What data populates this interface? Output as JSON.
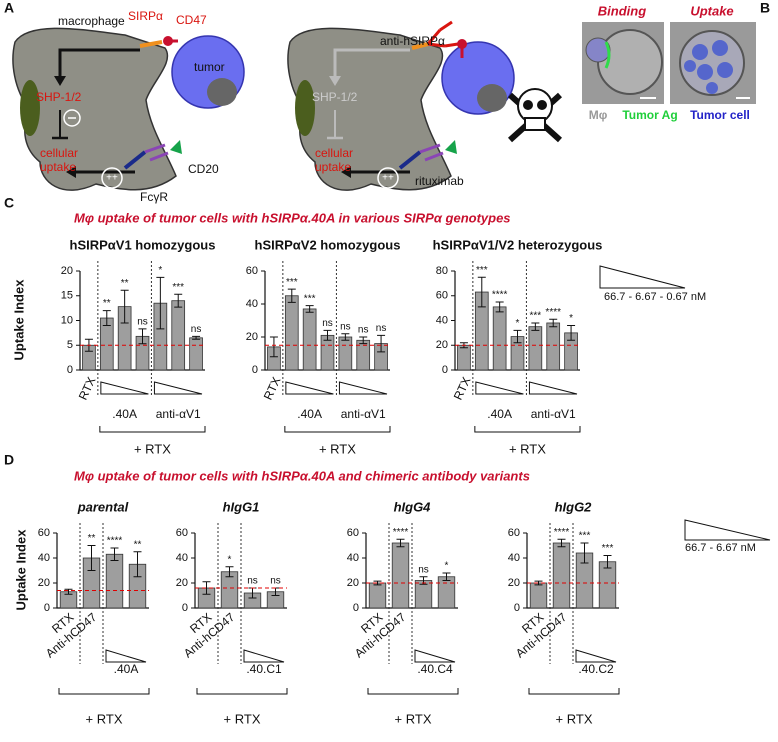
{
  "panel_a": {
    "label": "A",
    "left": {
      "macrophage": "macrophage",
      "sirpa": "SIRPα",
      "cd47": "CD47",
      "shp": "SHP-1/2",
      "tumor": "tumor",
      "uptake": [
        "cellular",
        "uptake"
      ],
      "cd20": "CD20",
      "fcgr": "FcγR",
      "plus": "++"
    },
    "right": {
      "antibody": "anti-hSIRPα",
      "shp": "SHP-1/2",
      "rituximab": "rituximab",
      "uptake": [
        "cellular",
        "uptake"
      ],
      "plus": "++"
    }
  },
  "panel_b": {
    "label": "B",
    "binding": "Binding",
    "uptake": "Uptake",
    "mphi": "Mφ",
    "tumor_ag": "Tumor Ag",
    "tumor_cell": "Tumor cell"
  },
  "panel_c": {
    "label": "C",
    "title": "Mφ uptake of tumor cells with hSIRPα.40A in various SIRPα genotypes",
    "y_label": "Uptake Index",
    "legend": "66.7 - 6.67 - 0.67 nM"
  },
  "panel_d": {
    "label": "D",
    "title": "Mφ uptake of tumor cells with hSIRPα.40A and chimeric antibody variants",
    "y_label": "Uptake Index",
    "legend": "66.7 - 6.67 nM"
  },
  "chart_data": [
    {
      "type": "bar",
      "title": "hSIRPαV1 homozygous",
      "color": "#9e9e9e",
      "categories": [
        "RTX",
        null,
        null,
        null,
        null,
        null,
        null
      ],
      "groups": [
        ".40A",
        "anti-αV1"
      ],
      "bracket_label": "+ RTX",
      "values": [
        5,
        10.5,
        12.8,
        6.8,
        13.5,
        14,
        6.5
      ],
      "errors": [
        1.2,
        1.5,
        3.3,
        1.5,
        5.2,
        1.3,
        0.3
      ],
      "significance": [
        null,
        "**",
        "**",
        "ns",
        "*",
        "***",
        "ns"
      ],
      "ylim": [
        0,
        20
      ],
      "yticks": [
        0,
        5,
        10,
        15,
        20
      ],
      "ref_line": 5
    },
    {
      "type": "bar",
      "title": "hSIRPαV2 homozygous",
      "color": "#9e9e9e",
      "categories": [
        "RTX",
        null,
        null,
        null,
        null,
        null,
        null
      ],
      "groups": [
        ".40A",
        "anti-αV1"
      ],
      "bracket_label": "+ RTX",
      "values": [
        14,
        45,
        37,
        21,
        20,
        18,
        16
      ],
      "errors": [
        6,
        4,
        2,
        3,
        2,
        2,
        5
      ],
      "significance": [
        null,
        "***",
        "***",
        "ns",
        "ns",
        "ns",
        "ns"
      ],
      "ylim": [
        0,
        60
      ],
      "yticks": [
        0,
        20,
        40,
        60
      ],
      "ref_line": 15
    },
    {
      "type": "bar",
      "title": "hSIRPαV1/V2 heterozygous",
      "color": "#9e9e9e",
      "categories": [
        "RTX",
        null,
        null,
        null,
        null,
        null,
        null
      ],
      "groups": [
        ".40A",
        "anti-αV1"
      ],
      "bracket_label": "+ RTX",
      "values": [
        20,
        63,
        51,
        27,
        35,
        38,
        30
      ],
      "errors": [
        2,
        12,
        4,
        5,
        3,
        3,
        6
      ],
      "significance": [
        null,
        "***",
        "****",
        "*",
        "***",
        "****",
        "*"
      ],
      "ylim": [
        0,
        80
      ],
      "yticks": [
        0,
        20,
        40,
        60,
        80
      ],
      "ref_line": 20
    },
    {
      "type": "bar",
      "title": "parental",
      "color": "#9e9e9e",
      "categories": [
        "RTX",
        "Anti-hCD47",
        null,
        null
      ],
      "groups": [
        ".40A"
      ],
      "bracket_label": "+ RTX",
      "values": [
        13,
        40,
        43,
        35
      ],
      "errors": [
        2,
        10,
        5,
        10
      ],
      "significance": [
        null,
        "**",
        "****",
        "**"
      ],
      "ylim": [
        0,
        60
      ],
      "yticks": [
        0,
        20,
        40,
        60
      ],
      "ref_line": 14
    },
    {
      "type": "bar",
      "title": "hIgG1",
      "color": "#9e9e9e",
      "categories": [
        "RTX",
        "Anti-hCD47",
        null,
        null
      ],
      "groups": [
        ".40.C1"
      ],
      "bracket_label": "+ RTX",
      "values": [
        16,
        29,
        12,
        13
      ],
      "errors": [
        5,
        4,
        4,
        3
      ],
      "significance": [
        null,
        "*",
        "ns",
        "ns"
      ],
      "ylim": [
        0,
        60
      ],
      "yticks": [
        0,
        20,
        40,
        60
      ],
      "ref_line": 16
    },
    {
      "type": "bar",
      "title": "hIgG4",
      "color": "#9e9e9e",
      "categories": [
        "RTX",
        "Anti-hCD47",
        null,
        null
      ],
      "groups": [
        ".40.C4"
      ],
      "bracket_label": "+ RTX",
      "values": [
        20,
        52,
        22,
        25
      ],
      "errors": [
        1.5,
        3,
        3,
        3
      ],
      "significance": [
        null,
        "****",
        "ns",
        "*"
      ],
      "ylim": [
        0,
        60
      ],
      "yticks": [
        0,
        20,
        40,
        60
      ],
      "ref_line": 20
    },
    {
      "type": "bar",
      "title": "hIgG2",
      "color": "#9e9e9e",
      "categories": [
        "RTX",
        "Anti-hCD47",
        null,
        null
      ],
      "groups": [
        ".40.C2"
      ],
      "bracket_label": "+ RTX",
      "values": [
        20,
        52,
        44,
        37
      ],
      "errors": [
        1.5,
        3,
        8,
        5
      ],
      "significance": [
        null,
        "****",
        "***",
        "***"
      ],
      "ylim": [
        0,
        60
      ],
      "yticks": [
        0,
        20,
        40,
        60
      ],
      "ref_line": 20
    }
  ]
}
